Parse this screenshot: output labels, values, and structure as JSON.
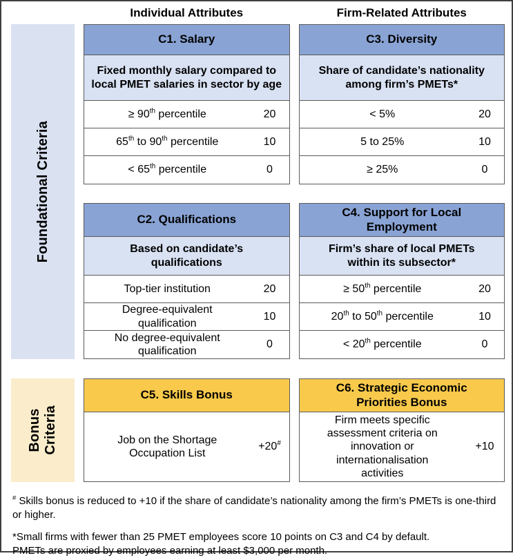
{
  "colors": {
    "card_header_blue": "#89A3D4",
    "card_sub_blue": "#D9E2F3",
    "band_blue": "#DAE1F1",
    "bonus_gold": "#F8C94B",
    "band_cream": "#FBEDCB"
  },
  "header": {
    "individual": "Individual Attributes",
    "firm": "Firm-Related Attributes"
  },
  "bands": {
    "foundational": "Foundational Criteria",
    "bonus": "Bonus\nCriteria"
  },
  "cards": {
    "c1": {
      "title": "C1. Salary",
      "subtitle": "Fixed monthly salary compared to local PMET salaries in sector by age",
      "rows": [
        {
          "label": [
            {
              "t": "≥ 90"
            },
            {
              "sup": "th"
            },
            {
              "t": " percentile"
            }
          ],
          "value": [
            {
              "t": "20"
            }
          ]
        },
        {
          "label": [
            {
              "t": "65"
            },
            {
              "sup": "th"
            },
            {
              "t": " to 90"
            },
            {
              "sup": "th"
            },
            {
              "t": " percentile"
            }
          ],
          "value": [
            {
              "t": "10"
            }
          ]
        },
        {
          "label": [
            {
              "t": "< 65"
            },
            {
              "sup": "th"
            },
            {
              "t": " percentile"
            }
          ],
          "value": [
            {
              "t": "0"
            }
          ]
        }
      ]
    },
    "c2": {
      "title": "C2. Qualifications",
      "subtitle": "Based on candidate’s qualifications",
      "rows": [
        {
          "label": [
            {
              "t": "Top-tier institution"
            }
          ],
          "value": [
            {
              "t": "20"
            }
          ]
        },
        {
          "label": [
            {
              "t": "Degree-equivalent qualification"
            }
          ],
          "value": [
            {
              "t": "10"
            }
          ]
        },
        {
          "label": [
            {
              "t": "No degree-equivalent qualification"
            }
          ],
          "value": [
            {
              "t": "0"
            }
          ]
        }
      ]
    },
    "c3": {
      "title": "C3. Diversity",
      "subtitle": "Share of candidate’s nationality among firm’s PMETs*",
      "rows": [
        {
          "label": [
            {
              "t": "< 5%"
            }
          ],
          "value": [
            {
              "t": "20"
            }
          ]
        },
        {
          "label": [
            {
              "t": "5 to 25%"
            }
          ],
          "value": [
            {
              "t": "10"
            }
          ]
        },
        {
          "label": [
            {
              "t": "≥ 25%"
            }
          ],
          "value": [
            {
              "t": "0"
            }
          ]
        }
      ]
    },
    "c4": {
      "title": "C4. Support for Local Employment",
      "subtitle": "Firm’s share of local PMETs within its subsector*",
      "rows": [
        {
          "label": [
            {
              "t": "≥ 50"
            },
            {
              "sup": "th"
            },
            {
              "t": " percentile"
            }
          ],
          "value": [
            {
              "t": "20"
            }
          ]
        },
        {
          "label": [
            {
              "t": "20"
            },
            {
              "sup": "th"
            },
            {
              "t": " to 50"
            },
            {
              "sup": "th"
            },
            {
              "t": " percentile"
            }
          ],
          "value": [
            {
              "t": "10"
            }
          ]
        },
        {
          "label": [
            {
              "t": "< 20"
            },
            {
              "sup": "th"
            },
            {
              "t": " percentile"
            }
          ],
          "value": [
            {
              "t": "0"
            }
          ]
        }
      ]
    },
    "c5": {
      "title": "C5. Skills Bonus",
      "rows": [
        {
          "label": [
            {
              "t": "Job on the Shortage Occupation List"
            }
          ],
          "value": [
            {
              "t": "+20"
            },
            {
              "sup": "#"
            }
          ]
        }
      ]
    },
    "c6": {
      "title": "C6. Strategic Economic Priorities Bonus",
      "rows": [
        {
          "label": [
            {
              "t": "Firm meets specific assessment criteria on innovation or internationalisation activities"
            }
          ],
          "value": [
            {
              "t": "+10"
            }
          ]
        }
      ]
    }
  },
  "footnotes": [
    {
      "segments": [
        {
          "sup": "#"
        },
        {
          "t": " Skills bonus is reduced to +10 if the share of candidate’s nationality among the firm’s PMETs is one-third or higher."
        }
      ]
    },
    {
      "segments": [
        {
          "t": "*Small firms with fewer than 25 PMET employees score 10 points on C3 and C4 by default.\nPMETs are proxied by employees earning at least $3,000 per month."
        }
      ]
    }
  ]
}
